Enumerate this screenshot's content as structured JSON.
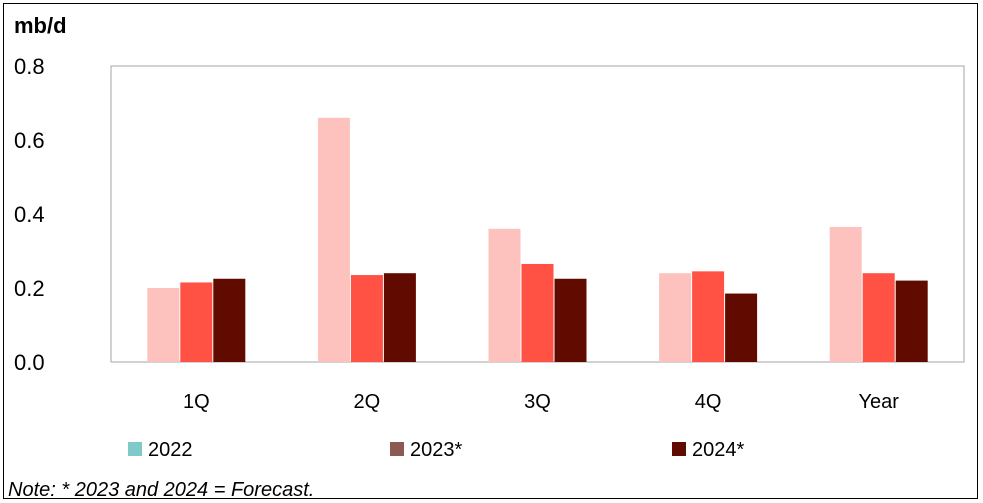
{
  "chart_data": {
    "type": "bar",
    "unit_label": "mb/d",
    "categories": [
      "1Q",
      "2Q",
      "3Q",
      "4Q",
      "Year"
    ],
    "series": [
      {
        "name": "2022",
        "values": [
          0.2,
          0.66,
          0.36,
          0.24,
          0.365
        ],
        "color": "#FDC2BD"
      },
      {
        "name": "2023*",
        "values": [
          0.215,
          0.235,
          0.265,
          0.245,
          0.24
        ],
        "color": "#FF5244"
      },
      {
        "name": "2024*",
        "values": [
          0.225,
          0.24,
          0.225,
          0.185,
          0.22
        ],
        "color": "#600A00"
      }
    ],
    "ylim": [
      0,
      0.8
    ],
    "yticks": [
      "0.0",
      "0.2",
      "0.4",
      "0.6",
      "0.8"
    ],
    "grid": false,
    "legend_placement": "bottom",
    "legend_swatch_colors": [
      "#7FCAC8",
      "#8C5A52",
      "#600A00"
    ],
    "note": "Note: * 2023 and 2024 = Forecast."
  }
}
